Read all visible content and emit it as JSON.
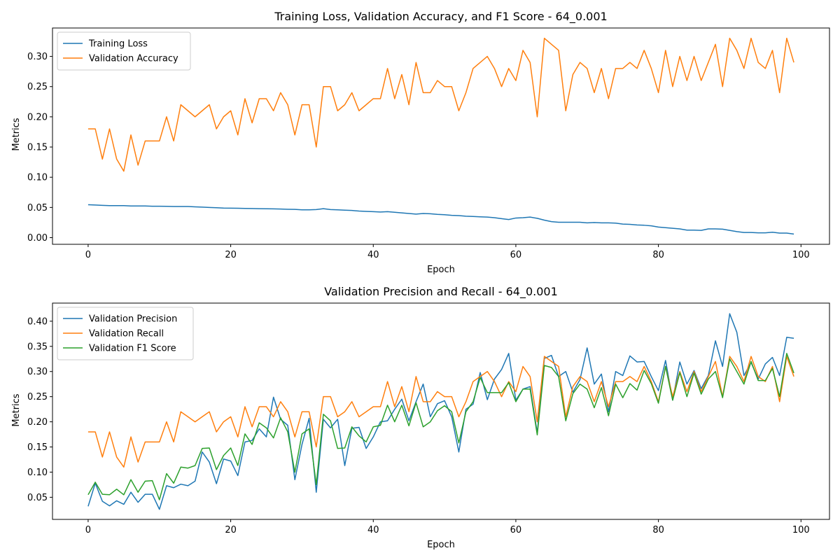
{
  "colors": {
    "c0": "#1f77b4",
    "c1": "#ff7f0e",
    "c2": "#2ca02c"
  },
  "chart_data": [
    {
      "type": "line",
      "title": "Training Loss, Validation Accuracy, and F1 Score - 64_0.001",
      "xlabel": "Epoch",
      "ylabel": "Metrics",
      "xlim": [
        -5,
        104
      ],
      "ylim": [
        -0.011,
        0.347
      ],
      "xticks": [
        0,
        20,
        40,
        60,
        80,
        100
      ],
      "yticks": [
        0.0,
        0.05,
        0.1,
        0.15,
        0.2,
        0.25,
        0.3
      ],
      "xtick_labels": [
        "0",
        "20",
        "40",
        "60",
        "80",
        "100"
      ],
      "ytick_labels": [
        "0.00",
        "0.05",
        "0.10",
        "0.15",
        "0.20",
        "0.25",
        "0.30"
      ],
      "legend": "top-left",
      "grid": false,
      "series": [
        {
          "name": "Training Loss",
          "color": "#1f77b4",
          "values": [
            0.0545,
            0.054,
            0.0535,
            0.053,
            0.053,
            0.053,
            0.0525,
            0.0525,
            0.0525,
            0.052,
            0.052,
            0.0518,
            0.0515,
            0.0515,
            0.0515,
            0.051,
            0.0505,
            0.05,
            0.0495,
            0.049,
            0.0488,
            0.0486,
            0.0484,
            0.0482,
            0.048,
            0.0478,
            0.0476,
            0.0474,
            0.047,
            0.0468,
            0.046,
            0.046,
            0.0465,
            0.048,
            0.0465,
            0.046,
            0.0455,
            0.045,
            0.044,
            0.0435,
            0.043,
            0.0425,
            0.043,
            0.042,
            0.041,
            0.04,
            0.039,
            0.04,
            0.0395,
            0.0385,
            0.038,
            0.037,
            0.0365,
            0.0355,
            0.035,
            0.0345,
            0.034,
            0.033,
            0.0315,
            0.03,
            0.0325,
            0.033,
            0.034,
            0.032,
            0.029,
            0.0265,
            0.0255,
            0.0255,
            0.0255,
            0.0255,
            0.0245,
            0.025,
            0.0245,
            0.0245,
            0.024,
            0.0225,
            0.022,
            0.021,
            0.0205,
            0.0195,
            0.0175,
            0.0165,
            0.0155,
            0.0145,
            0.0125,
            0.0125,
            0.012,
            0.0145,
            0.0145,
            0.014,
            0.012,
            0.01,
            0.0085,
            0.0085,
            0.008,
            0.008,
            0.009,
            0.0075,
            0.0075,
            0.006
          ]
        },
        {
          "name": "Validation Accuracy",
          "color": "#ff7f0e",
          "values": [
            0.18,
            0.18,
            0.13,
            0.18,
            0.13,
            0.11,
            0.17,
            0.12,
            0.16,
            0.16,
            0.16,
            0.2,
            0.16,
            0.22,
            0.21,
            0.2,
            0.21,
            0.22,
            0.18,
            0.2,
            0.21,
            0.17,
            0.23,
            0.19,
            0.23,
            0.23,
            0.21,
            0.24,
            0.22,
            0.17,
            0.22,
            0.22,
            0.15,
            0.25,
            0.25,
            0.21,
            0.22,
            0.24,
            0.21,
            0.22,
            0.23,
            0.23,
            0.28,
            0.23,
            0.27,
            0.22,
            0.29,
            0.24,
            0.24,
            0.26,
            0.25,
            0.25,
            0.21,
            0.24,
            0.28,
            0.29,
            0.3,
            0.28,
            0.25,
            0.28,
            0.26,
            0.31,
            0.29,
            0.2,
            0.33,
            0.32,
            0.31,
            0.21,
            0.27,
            0.29,
            0.28,
            0.24,
            0.28,
            0.23,
            0.28,
            0.28,
            0.29,
            0.28,
            0.31,
            0.28,
            0.24,
            0.31,
            0.25,
            0.3,
            0.26,
            0.3,
            0.26,
            0.29,
            0.32,
            0.25,
            0.33,
            0.31,
            0.28,
            0.33,
            0.29,
            0.28,
            0.31,
            0.24,
            0.33,
            0.29
          ]
        }
      ]
    },
    {
      "type": "line",
      "title": "Validation Precision and Recall - 64_0.001",
      "xlabel": "Epoch",
      "ylabel": "Metrics",
      "xlim": [
        -5,
        104
      ],
      "ylim": [
        0.006,
        0.436
      ],
      "xticks": [
        0,
        20,
        40,
        60,
        80,
        100
      ],
      "yticks": [
        0.05,
        0.1,
        0.15,
        0.2,
        0.25,
        0.3,
        0.35,
        0.4
      ],
      "xtick_labels": [
        "0",
        "20",
        "40",
        "60",
        "80",
        "100"
      ],
      "ytick_labels": [
        "0.05",
        "0.10",
        "0.15",
        "0.20",
        "0.25",
        "0.30",
        "0.35",
        "0.40"
      ],
      "legend": "top-left",
      "grid": false,
      "series": [
        {
          "name": "Validation Precision",
          "color": "#1f77b4",
          "values": [
            0.032,
            0.078,
            0.042,
            0.033,
            0.043,
            0.036,
            0.06,
            0.04,
            0.056,
            0.056,
            0.026,
            0.073,
            0.069,
            0.076,
            0.073,
            0.082,
            0.14,
            0.12,
            0.077,
            0.126,
            0.122,
            0.093,
            0.16,
            0.163,
            0.186,
            0.17,
            0.249,
            0.205,
            0.193,
            0.085,
            0.155,
            0.207,
            0.06,
            0.205,
            0.188,
            0.205,
            0.113,
            0.187,
            0.189,
            0.147,
            0.17,
            0.2,
            0.202,
            0.225,
            0.245,
            0.202,
            0.24,
            0.275,
            0.21,
            0.236,
            0.242,
            0.21,
            0.14,
            0.225,
            0.235,
            0.298,
            0.244,
            0.285,
            0.304,
            0.336,
            0.243,
            0.265,
            0.27,
            0.178,
            0.326,
            0.332,
            0.29,
            0.3,
            0.259,
            0.284,
            0.347,
            0.275,
            0.295,
            0.22,
            0.3,
            0.292,
            0.331,
            0.319,
            0.32,
            0.29,
            0.262,
            0.322,
            0.243,
            0.319,
            0.275,
            0.302,
            0.266,
            0.292,
            0.361,
            0.31,
            0.415,
            0.378,
            0.292,
            0.318,
            0.285,
            0.315,
            0.328,
            0.292,
            0.368,
            0.366
          ]
        },
        {
          "name": "Validation Recall",
          "color": "#ff7f0e",
          "values": [
            0.18,
            0.18,
            0.13,
            0.18,
            0.13,
            0.11,
            0.17,
            0.12,
            0.16,
            0.16,
            0.16,
            0.2,
            0.16,
            0.22,
            0.21,
            0.2,
            0.21,
            0.22,
            0.18,
            0.2,
            0.21,
            0.17,
            0.23,
            0.19,
            0.23,
            0.23,
            0.21,
            0.24,
            0.22,
            0.17,
            0.22,
            0.22,
            0.15,
            0.25,
            0.25,
            0.21,
            0.22,
            0.24,
            0.21,
            0.22,
            0.23,
            0.23,
            0.28,
            0.23,
            0.27,
            0.22,
            0.29,
            0.24,
            0.24,
            0.26,
            0.25,
            0.25,
            0.21,
            0.24,
            0.28,
            0.29,
            0.3,
            0.28,
            0.25,
            0.28,
            0.26,
            0.31,
            0.29,
            0.2,
            0.33,
            0.32,
            0.31,
            0.21,
            0.27,
            0.29,
            0.28,
            0.24,
            0.28,
            0.23,
            0.28,
            0.28,
            0.29,
            0.28,
            0.31,
            0.28,
            0.24,
            0.31,
            0.25,
            0.3,
            0.26,
            0.3,
            0.26,
            0.29,
            0.32,
            0.25,
            0.33,
            0.31,
            0.28,
            0.33,
            0.29,
            0.28,
            0.31,
            0.24,
            0.33,
            0.29
          ]
        },
        {
          "name": "Validation F1 Score",
          "color": "#2ca02c",
          "values": [
            0.055,
            0.08,
            0.056,
            0.055,
            0.066,
            0.055,
            0.085,
            0.06,
            0.082,
            0.083,
            0.045,
            0.097,
            0.078,
            0.11,
            0.108,
            0.113,
            0.147,
            0.148,
            0.105,
            0.133,
            0.148,
            0.113,
            0.176,
            0.155,
            0.198,
            0.188,
            0.168,
            0.208,
            0.18,
            0.1,
            0.176,
            0.186,
            0.075,
            0.215,
            0.202,
            0.147,
            0.148,
            0.19,
            0.172,
            0.16,
            0.19,
            0.193,
            0.233,
            0.2,
            0.233,
            0.192,
            0.238,
            0.19,
            0.2,
            0.222,
            0.232,
            0.22,
            0.158,
            0.22,
            0.24,
            0.288,
            0.258,
            0.258,
            0.258,
            0.278,
            0.24,
            0.265,
            0.265,
            0.174,
            0.312,
            0.308,
            0.29,
            0.202,
            0.256,
            0.275,
            0.265,
            0.228,
            0.268,
            0.212,
            0.275,
            0.248,
            0.276,
            0.263,
            0.302,
            0.276,
            0.237,
            0.31,
            0.243,
            0.298,
            0.25,
            0.297,
            0.255,
            0.285,
            0.3,
            0.248,
            0.325,
            0.3,
            0.275,
            0.32,
            0.282,
            0.282,
            0.306,
            0.25,
            0.336,
            0.297
          ]
        }
      ]
    }
  ]
}
